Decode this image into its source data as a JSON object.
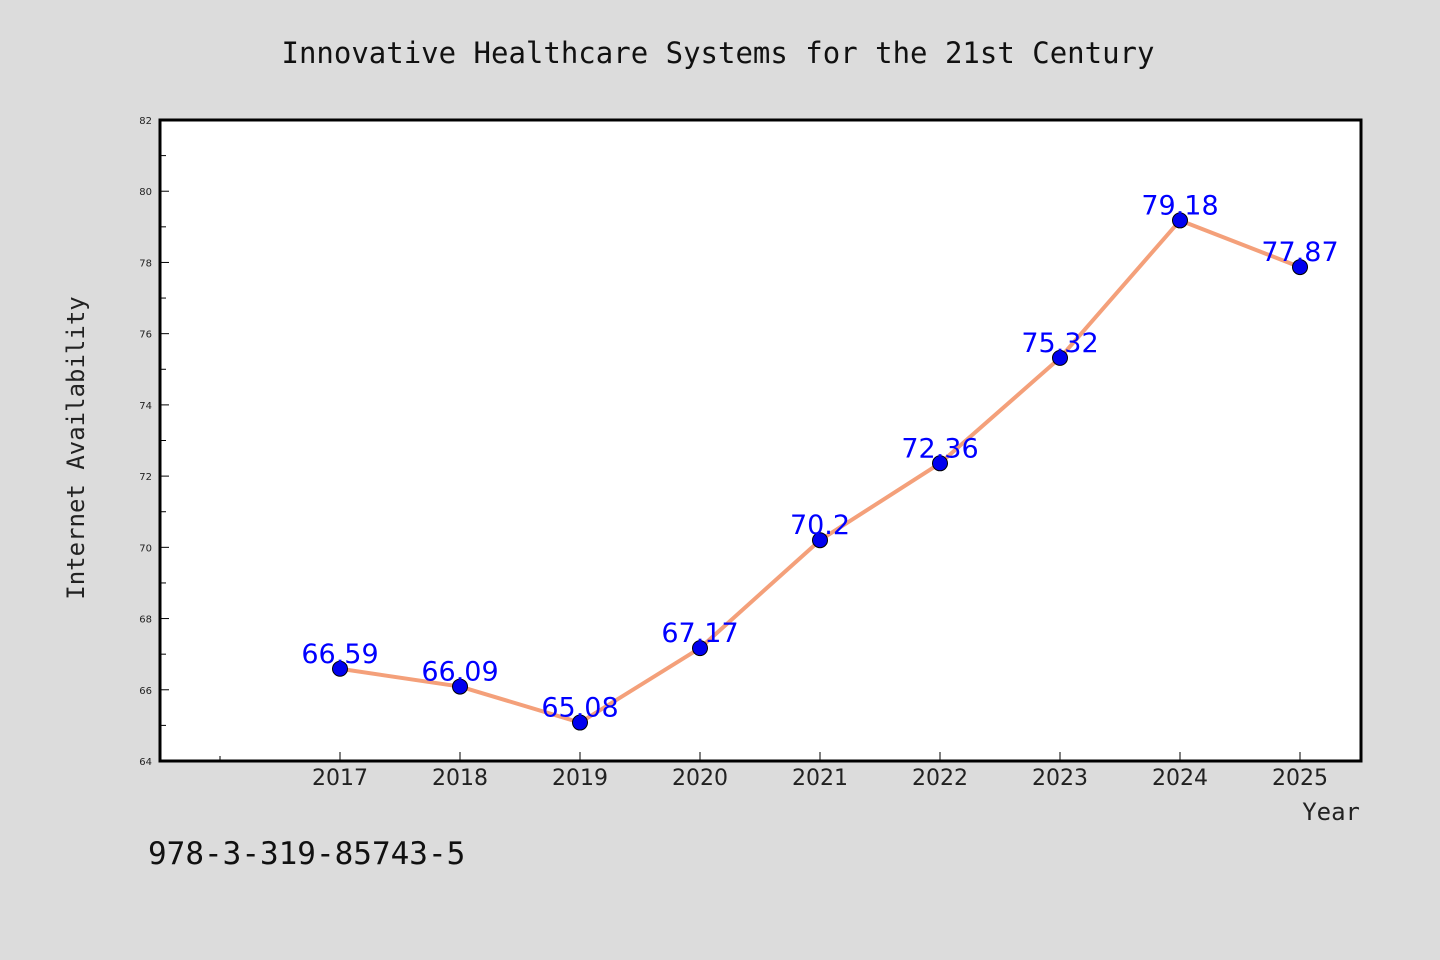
{
  "chart_data": {
    "type": "line",
    "title": "Innovative Healthcare Systems for the 21st Century",
    "xlabel": "Year",
    "ylabel": "Internet Availability",
    "categories": [
      "2017",
      "2018",
      "2019",
      "2020",
      "2021",
      "2022",
      "2023",
      "2024",
      "2025"
    ],
    "series": [
      {
        "values": [
          66.59,
          66.09,
          65.08,
          67.17,
          70.2,
          72.36,
          75.32,
          79.18,
          77.87
        ],
        "labels": [
          "66.59",
          "66.09",
          "65.08",
          "67.17",
          "70.2",
          "72.36",
          "75.32",
          "79.18",
          "77.87"
        ],
        "line_color": "#f4a07a",
        "marker_color": "#0000ee"
      }
    ],
    "ylim": [
      64,
      82
    ],
    "yticks": [
      "64",
      "66",
      "68",
      "70",
      "72",
      "74",
      "76",
      "78",
      "80",
      "82"
    ],
    "grid": false,
    "legend": "none"
  },
  "footer_text": "978-3-319-85743-5",
  "colors": {
    "background": "#dcdcdc",
    "plot_background": "#ffffff",
    "label_color": "#0000ff"
  }
}
